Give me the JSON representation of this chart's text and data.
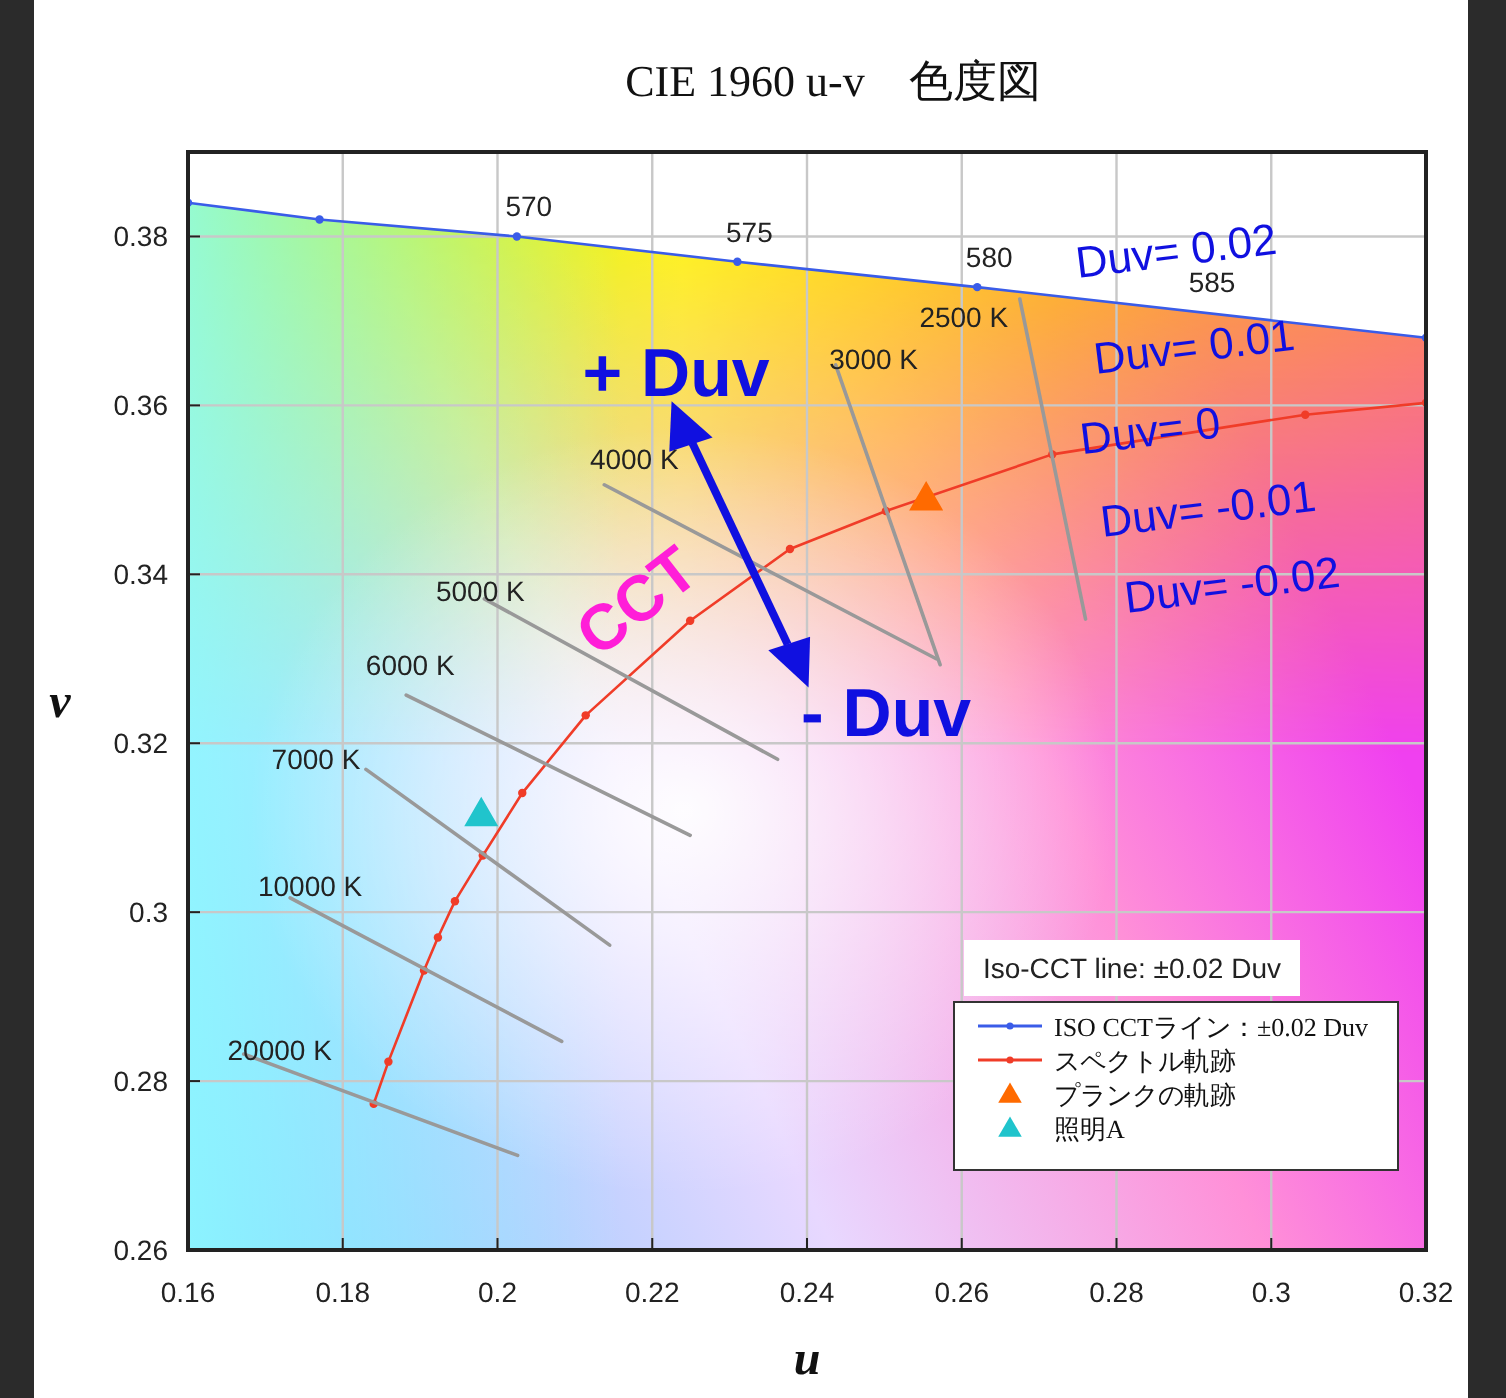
{
  "chart_data": {
    "type": "line",
    "title": "CIE 1960 u-v　色度図",
    "xlabel": "u",
    "ylabel": "v",
    "xlim": [
      0.16,
      0.32
    ],
    "ylim": [
      0.26,
      0.39
    ],
    "xticks": [
      0.16,
      0.18,
      0.2,
      0.22,
      0.24,
      0.26,
      0.28,
      0.3,
      0.32
    ],
    "yticks": [
      0.26,
      0.28,
      0.3,
      0.32,
      0.34,
      0.36,
      0.38
    ],
    "grid": true,
    "legend": "bottom right",
    "series": [
      {
        "name": "ISO CCTライン：±0.02 Duv",
        "color": "#3a5ce8",
        "marker": "circle",
        "x": [
          0.16,
          0.177,
          0.2025,
          0.231,
          0.262,
          0.32
        ],
        "values": [
          0.384,
          0.382,
          0.38,
          0.377,
          0.374,
          0.368
        ]
      },
      {
        "name": "スペクトル軌跡",
        "color": "#f03c28",
        "marker": "circle",
        "x": [
          0.184,
          0.1859,
          0.1905,
          0.1923,
          0.1945,
          0.1981,
          0.2032,
          0.2114,
          0.2249,
          0.2378,
          0.2502,
          0.2717,
          0.3044,
          0.32
        ],
        "values": [
          0.2773,
          0.2823,
          0.2931,
          0.297,
          0.3013,
          0.3067,
          0.3141,
          0.3233,
          0.3345,
          0.343,
          0.3475,
          0.3542,
          0.3589,
          0.3603
        ]
      },
      {
        "name": "プランクの軌跡",
        "type": "scatter",
        "color": "#ff6a00",
        "marker": "triangle",
        "x": [
          0.2554
        ],
        "values": [
          0.3492
        ]
      },
      {
        "name": "照明A",
        "type": "scatter",
        "color": "#20c4cc",
        "marker": "triangle",
        "x": [
          0.1979
        ],
        "values": [
          0.3118
        ]
      },
      {
        "color": "#999999",
        "marker": "none",
        "x": [
          0.1672,
          0.2026
        ],
        "values": [
          0.2832,
          0.2712
        ]
      },
      {
        "color": "#999999",
        "marker": "none",
        "x": [
          0.1732,
          0.2083
        ],
        "values": [
          0.3017,
          0.2847
        ]
      },
      {
        "color": "#999999",
        "marker": "none",
        "x": [
          0.183,
          0.2145
        ],
        "values": [
          0.3169,
          0.2961
        ]
      },
      {
        "color": "#999999",
        "marker": "none",
        "x": [
          0.1882,
          0.2249
        ],
        "values": [
          0.3257,
          0.3091
        ]
      },
      {
        "color": "#999999",
        "marker": "none",
        "x": [
          0.1983,
          0.2362
        ],
        "values": [
          0.3371,
          0.3181
        ]
      },
      {
        "color": "#999999",
        "marker": "none",
        "x": [
          0.2138,
          0.2567
        ],
        "values": [
          0.3506,
          0.33
        ]
      },
      {
        "color": "#999999",
        "marker": "none",
        "x": [
          0.2437,
          0.2572
        ],
        "values": [
          0.3648,
          0.3293
        ]
      },
      {
        "color": "#999999",
        "marker": "none",
        "x": [
          0.2675,
          0.276
        ],
        "values": [
          0.3726,
          0.3347
        ]
      }
    ],
    "annotations": [
      {
        "text": "570",
        "x": 0.2025,
        "y": 0.38
      },
      {
        "text": "575",
        "x": 0.231,
        "y": 0.377
      },
      {
        "text": "580",
        "x": 0.262,
        "y": 0.374
      },
      {
        "text": "585",
        "x": 0.2908,
        "y": 0.371
      },
      {
        "text": "20000 K",
        "x": 0.1672,
        "y": 0.2832
      },
      {
        "text": "10000 K",
        "x": 0.1732,
        "y": 0.3017
      },
      {
        "text": "7000 K",
        "x": 0.183,
        "y": 0.3169
      },
      {
        "text": "6000 K",
        "x": 0.1882,
        "y": 0.3257
      },
      {
        "text": "5000 K",
        "x": 0.1983,
        "y": 0.3371
      },
      {
        "text": "4000 K",
        "x": 0.2138,
        "y": 0.3506
      },
      {
        "text": "3000 K",
        "x": 0.2437,
        "y": 0.3648
      },
      {
        "text": "2500 K",
        "x": 0.2675,
        "y": 0.3726
      },
      "Duv= 0.02",
      "Duv= 0.01",
      "Duv= 0",
      "Duv= -0.01",
      "Duv= -0.02",
      "+ Duv",
      "- Duv",
      "CCT",
      "Iso-CCT line: ±0.02 Duv"
    ]
  }
}
